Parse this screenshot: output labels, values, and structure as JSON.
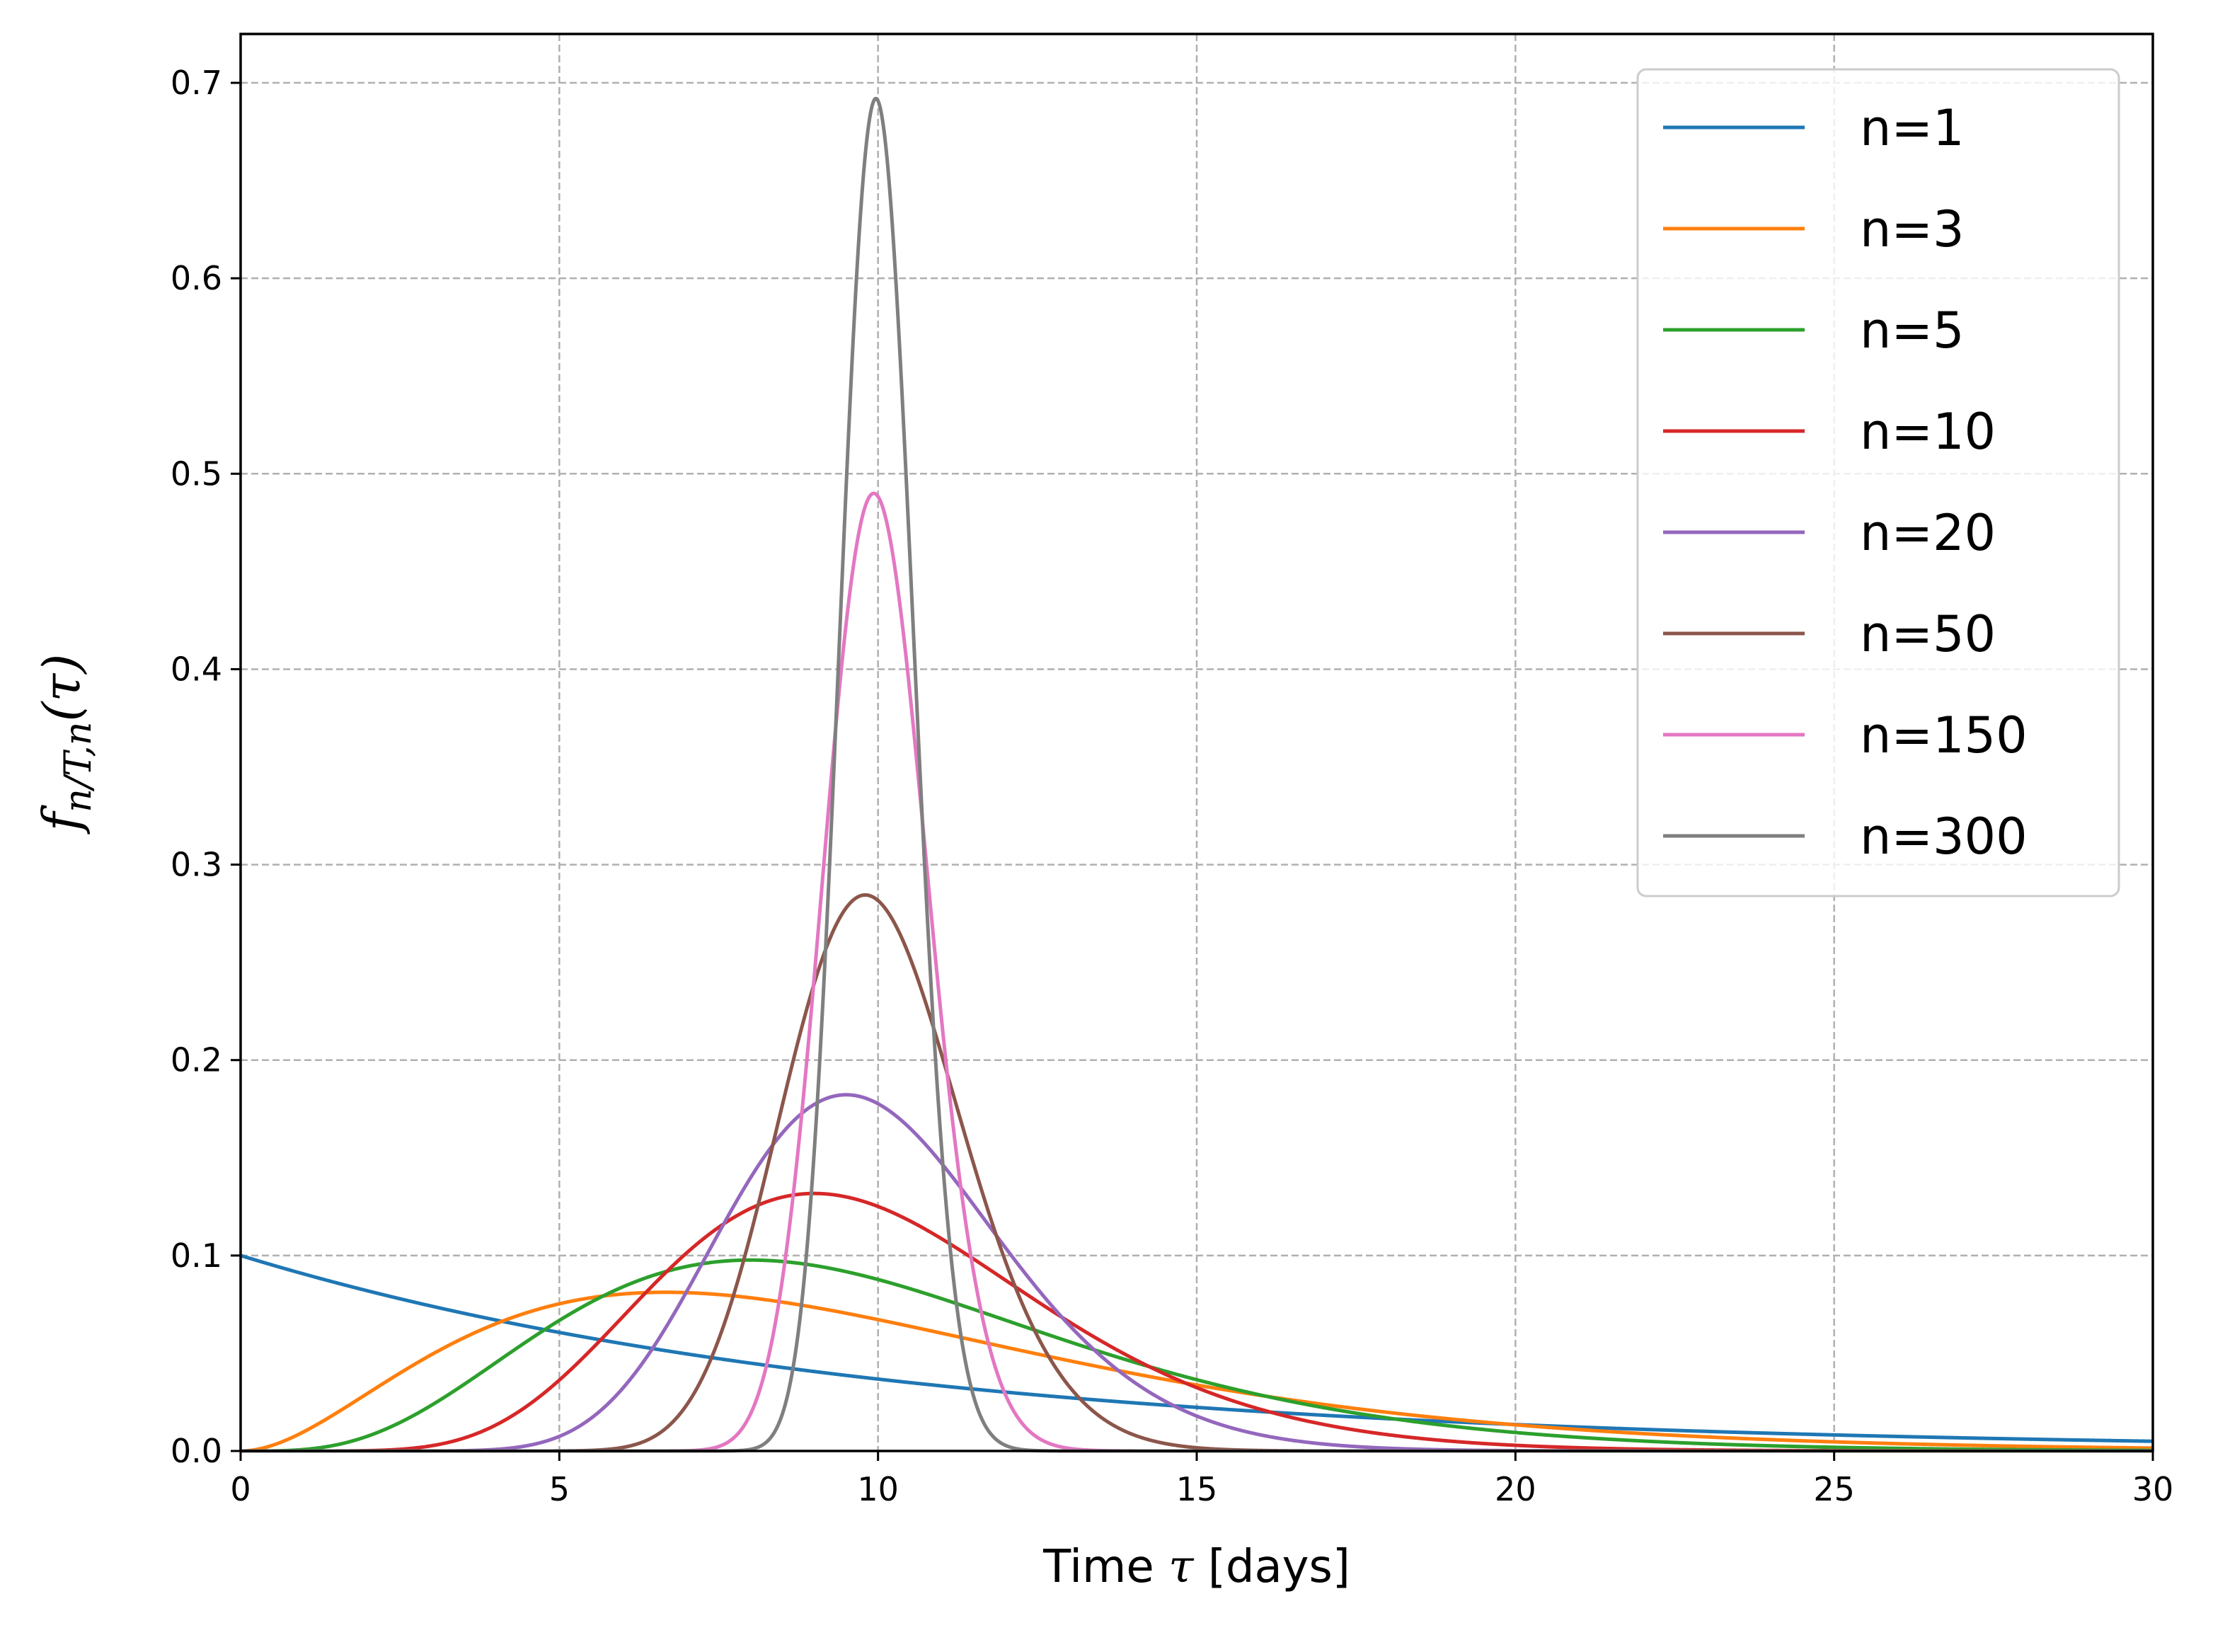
{
  "chart_data": {
    "type": "line",
    "xlabel_parts": [
      "Time ",
      "τ",
      " [days]"
    ],
    "ylabel_parts": [
      "f",
      "n/T,n",
      "(τ)"
    ],
    "xlim": [
      0,
      30
    ],
    "ylim": [
      0,
      0.725
    ],
    "x_ticks": [
      0,
      5,
      10,
      15,
      20,
      25,
      30
    ],
    "x_tick_labels": [
      "0",
      "5",
      "10",
      "15",
      "20",
      "25",
      "30"
    ],
    "y_ticks": [
      0,
      0.1,
      0.2,
      0.3,
      0.4,
      0.5,
      0.6,
      0.7
    ],
    "y_tick_labels": [
      "0.0",
      "0.1",
      "0.2",
      "0.3",
      "0.4",
      "0.5",
      "0.6",
      "0.7"
    ],
    "grid": true,
    "legend_position": "top-right",
    "mean_days": 10,
    "series": [
      {
        "name": "n=1",
        "shape": 1,
        "color": "#1f77b4"
      },
      {
        "name": "n=3",
        "shape": 3,
        "color": "#ff7f0e"
      },
      {
        "name": "n=5",
        "shape": 5,
        "color": "#2ca02c"
      },
      {
        "name": "n=10",
        "shape": 10,
        "color": "#d62728"
      },
      {
        "name": "n=20",
        "shape": 20,
        "color": "#9467bd"
      },
      {
        "name": "n=50",
        "shape": 50,
        "color": "#8c564b"
      },
      {
        "name": "n=150",
        "shape": 150,
        "color": "#e377c2"
      },
      {
        "name": "n=300",
        "shape": 300,
        "color": "#7f7f7f"
      }
    ]
  }
}
